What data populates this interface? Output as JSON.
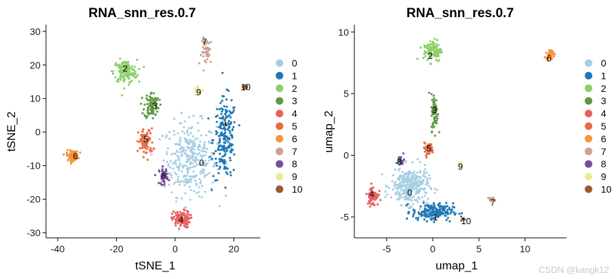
{
  "clusters": [
    "0",
    "1",
    "2",
    "3",
    "4",
    "5",
    "6",
    "7",
    "8",
    "9",
    "10"
  ],
  "colors": [
    "#a6cee3",
    "#1f78b4",
    "#8fcf6b",
    "#5e9a45",
    "#e8605f",
    "#e66b45",
    "#f4953a",
    "#cda090",
    "#7b4e9b",
    "#eee89a",
    "#a3572b"
  ],
  "watermark": "CSDN @kangk12",
  "chart_data": [
    {
      "type": "scatter",
      "title": "RNA_snn_res.0.7",
      "xlabel": "tSNE_1",
      "ylabel": "tSNE_2",
      "xlim": [
        -44,
        29
      ],
      "ylim": [
        -31.5,
        32
      ],
      "xticks": [
        -40,
        -20,
        0,
        20
      ],
      "yticks": [
        -30,
        -20,
        -10,
        0,
        10,
        20,
        30
      ],
      "legend": "right",
      "clusters": [
        {
          "name": "0",
          "center": [
            5,
            -8
          ],
          "spread": [
            9,
            11
          ],
          "n": 320
        },
        {
          "name": "1",
          "center": [
            17,
            -2
          ],
          "spread": [
            4,
            12
          ],
          "n": 200
        },
        {
          "name": "2",
          "center": [
            -17,
            18
          ],
          "spread": [
            4,
            3.5
          ],
          "n": 140
        },
        {
          "name": "3",
          "center": [
            -8,
            8
          ],
          "spread": [
            2.5,
            4
          ],
          "n": 90
        },
        {
          "name": "4",
          "center": [
            2,
            -26
          ],
          "spread": [
            3,
            2.5
          ],
          "n": 110
        },
        {
          "name": "5",
          "center": [
            -10,
            -3
          ],
          "spread": [
            2.5,
            4
          ],
          "n": 80
        },
        {
          "name": "6",
          "center": [
            -35,
            -7
          ],
          "spread": [
            2,
            1.5
          ],
          "n": 90
        },
        {
          "name": "7",
          "center": [
            11,
            24
          ],
          "spread": [
            2,
            4
          ],
          "n": 45
        },
        {
          "name": "8",
          "center": [
            -4,
            -13
          ],
          "spread": [
            1.5,
            2.5
          ],
          "n": 40
        },
        {
          "name": "9",
          "center": [
            8,
            12.5
          ],
          "spread": [
            1.5,
            1
          ],
          "n": 25
        },
        {
          "name": "10",
          "center": [
            24,
            13.5
          ],
          "spread": [
            0.8,
            0.7
          ],
          "n": 14
        }
      ],
      "labels": [
        {
          "text": "0",
          "x": 9,
          "y": -9
        },
        {
          "text": "1",
          "x": 17,
          "y": 3
        },
        {
          "text": "2",
          "x": -17,
          "y": 19
        },
        {
          "text": "3",
          "x": -7,
          "y": 8
        },
        {
          "text": "4",
          "x": 2,
          "y": -26
        },
        {
          "text": "5",
          "x": -10,
          "y": -2
        },
        {
          "text": "6",
          "x": -34,
          "y": -7
        },
        {
          "text": "7",
          "x": 10,
          "y": 27
        },
        {
          "text": "8",
          "x": -4,
          "y": -13
        },
        {
          "text": "9",
          "x": 8,
          "y": 12
        },
        {
          "text": "10",
          "x": 24,
          "y": 13.5
        }
      ]
    },
    {
      "type": "scatter",
      "title": "RNA_snn_res.0.7",
      "xlabel": "umap_1",
      "ylabel": "umap_2",
      "xlim": [
        -8.5,
        14.5
      ],
      "ylim": [
        -6.7,
        10.6
      ],
      "xticks": [
        -5,
        0,
        5,
        10
      ],
      "yticks": [
        -5,
        0,
        5,
        10
      ],
      "legend": "right",
      "clusters": [
        {
          "name": "0",
          "center": [
            -2.5,
            -2.5
          ],
          "spread": [
            2,
            1.5
          ],
          "n": 300
        },
        {
          "name": "1",
          "center": [
            0,
            -4.6
          ],
          "spread": [
            2.2,
            0.7
          ],
          "n": 180
        },
        {
          "name": "2",
          "center": [
            0,
            8.5
          ],
          "spread": [
            1,
            0.9
          ],
          "n": 110
        },
        {
          "name": "3",
          "center": [
            0.2,
            3.5
          ],
          "spread": [
            0.35,
            1.5
          ],
          "n": 70
        },
        {
          "name": "4",
          "center": [
            -6.5,
            -3.3
          ],
          "spread": [
            0.6,
            0.8
          ],
          "n": 70
        },
        {
          "name": "5",
          "center": [
            -0.5,
            0.5
          ],
          "spread": [
            0.6,
            0.5
          ],
          "n": 45
        },
        {
          "name": "6",
          "center": [
            12.7,
            8.2
          ],
          "spread": [
            0.4,
            0.35
          ],
          "n": 60
        },
        {
          "name": "7",
          "center": [
            6.5,
            -3.6
          ],
          "spread": [
            0.4,
            0.2
          ],
          "n": 20
        },
        {
          "name": "8",
          "center": [
            -3.5,
            -0.4
          ],
          "spread": [
            0.4,
            0.4
          ],
          "n": 20
        },
        {
          "name": "9",
          "center": [
            3,
            -0.7
          ],
          "spread": [
            0.25,
            0.2
          ],
          "n": 12
        },
        {
          "name": "10",
          "center": [
            3.3,
            -5.2
          ],
          "spread": [
            0.2,
            0.12
          ],
          "n": 8
        }
      ],
      "labels": [
        {
          "text": "0",
          "x": -2.5,
          "y": -3
        },
        {
          "text": "1",
          "x": 0.3,
          "y": -5
        },
        {
          "text": "2",
          "x": -0.3,
          "y": 8.1
        },
        {
          "text": "3",
          "x": 0.2,
          "y": 3.7
        },
        {
          "text": "4",
          "x": -6.6,
          "y": -3.1
        },
        {
          "text": "5",
          "x": -0.4,
          "y": 0.6
        },
        {
          "text": "6",
          "x": 12.6,
          "y": 7.9
        },
        {
          "text": "7",
          "x": 6.5,
          "y": -3.8
        },
        {
          "text": "8",
          "x": -3.6,
          "y": -0.5
        },
        {
          "text": "9",
          "x": 3,
          "y": -0.9
        },
        {
          "text": "10",
          "x": 3.6,
          "y": -5.3
        }
      ]
    }
  ]
}
